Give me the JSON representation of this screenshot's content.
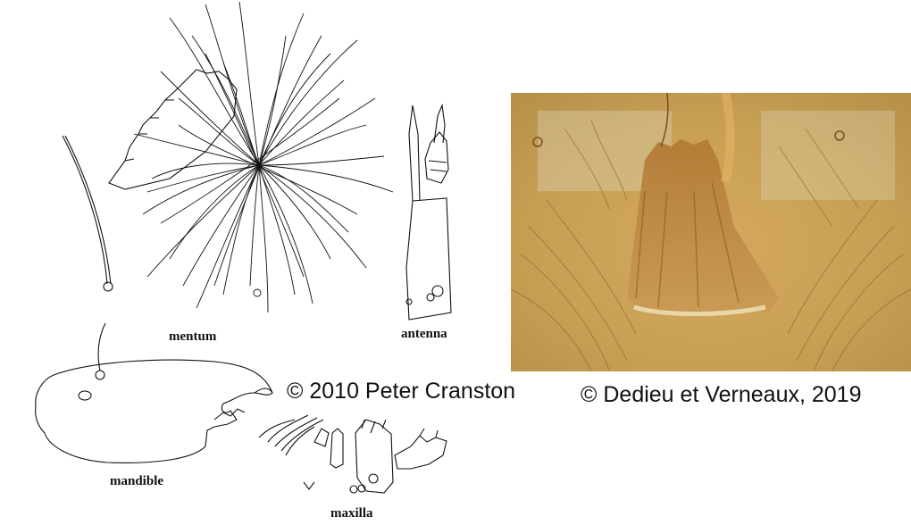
{
  "labels": {
    "mentum": "mentum",
    "antenna": "antenna",
    "mandible": "mandible",
    "maxilla": "maxilla"
  },
  "credits": {
    "left": "© 2010 Peter Cranston",
    "right": "© Dedieu et Verneaux, 2019"
  },
  "colors": {
    "ink": "#111111",
    "photo_bg": "#c8a055",
    "photo_dark": "#8a5a1e",
    "photo_light": "#d9c9a0"
  }
}
